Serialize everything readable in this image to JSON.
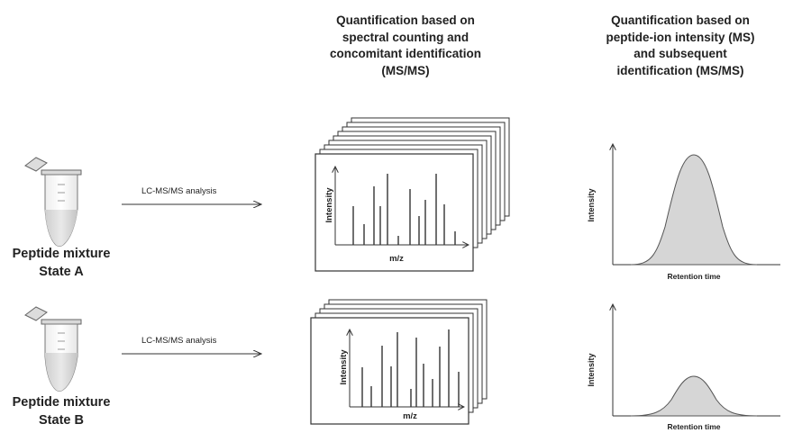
{
  "header_ms2": [
    "Quantification based on",
    "spectral counting and",
    "concomitant identification",
    "(MS/MS)"
  ],
  "header_ms1": [
    "Quantification based on",
    "peptide-ion intensity (MS)",
    "and subsequent",
    "identification (MS/MS)"
  ],
  "rows": [
    {
      "sample_line1": "Peptide mixture",
      "sample_line2": "State A",
      "arrow_label": "LC-MS/MS analysis",
      "spectra_xlabel": "m/z",
      "spectra_ylabel": "Intensity",
      "chrom_xlabel": "Retention time",
      "chrom_ylabel": "Intensity"
    },
    {
      "sample_line1": "Peptide mixture",
      "sample_line2": "State B",
      "arrow_label": "LC-MS/MS analysis",
      "spectra_xlabel": "m/z",
      "spectra_ylabel": "Intensity",
      "chrom_xlabel": "Retention time",
      "chrom_ylabel": "Intensity"
    }
  ],
  "colors": {
    "peak_fill": "#d6d6d6",
    "line": "#333333"
  }
}
